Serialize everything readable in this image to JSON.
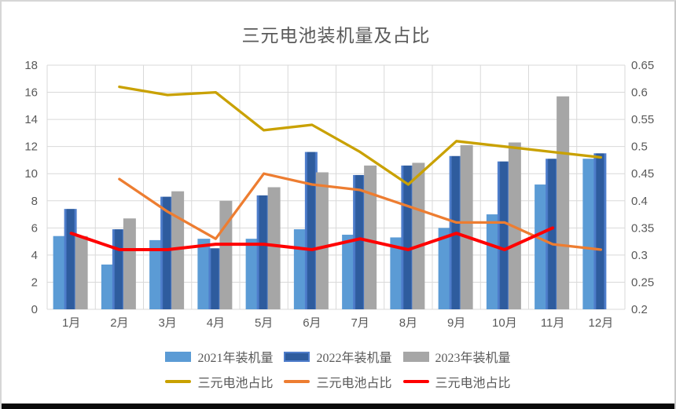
{
  "window": {
    "background": "#ffffff",
    "border_color": "#d6d6d6",
    "bottom_bar_color": "#0a0a0a"
  },
  "chart_data": {
    "type": "combo-bar-line",
    "title": "三元电池装机量及占比",
    "categories": [
      "1月",
      "2月",
      "3月",
      "4月",
      "5月",
      "6月",
      "7月",
      "8月",
      "9月",
      "10月",
      "11月",
      "12月"
    ],
    "grid": true,
    "grid_color": "#d9d9d9",
    "text_color": "#595959",
    "legend_position": "bottom",
    "left_axis": {
      "min": 0,
      "max": 18,
      "step": 2,
      "ticks": [
        "18",
        "16",
        "14",
        "12",
        "10",
        "8",
        "6",
        "4",
        "2",
        "0"
      ]
    },
    "right_axis": {
      "min": 0.2,
      "max": 0.65,
      "step": 0.05,
      "ticks": [
        "0.65",
        "0.6",
        "0.55",
        "0.5",
        "0.45",
        "0.4",
        "0.35",
        "0.3",
        "0.25",
        "0.2"
      ]
    },
    "bar_series": [
      {
        "name": "2021年装机量",
        "color": "#5b9bd5",
        "axis": "left",
        "values": [
          5.4,
          3.3,
          5.1,
          5.2,
          5.2,
          5.9,
          5.5,
          5.3,
          6.0,
          7.0,
          9.2,
          11.1
        ]
      },
      {
        "name": "2022年装机量",
        "color": "#2e5c9e",
        "bevel_color": "#4e7dcb",
        "axis": "left",
        "values": [
          7.4,
          5.9,
          8.3,
          4.5,
          8.4,
          11.6,
          9.9,
          10.6,
          11.3,
          10.9,
          11.1,
          11.5
        ]
      },
      {
        "name": "2023年装机量",
        "color": "#a6a6a6",
        "axis": "left",
        "values": [
          5.4,
          6.7,
          8.7,
          8.0,
          9.0,
          10.1,
          10.6,
          10.8,
          12.1,
          12.3,
          15.7,
          null
        ]
      }
    ],
    "line_series": [
      {
        "name": "三元电池占比",
        "color": "#c9a100",
        "width": 3.3,
        "axis": "right",
        "values": [
          null,
          0.61,
          0.595,
          0.6,
          0.53,
          0.54,
          0.49,
          0.43,
          0.51,
          0.5,
          0.49,
          0.48
        ]
      },
      {
        "name": "三元电池占比",
        "color": "#ed7d31",
        "width": 3.3,
        "axis": "right",
        "values": [
          null,
          0.44,
          0.38,
          0.33,
          0.45,
          0.43,
          0.42,
          0.39,
          0.36,
          0.36,
          0.32,
          0.31
        ]
      },
      {
        "name": "三元电池占比",
        "color": "#ff0000",
        "width": 4,
        "axis": "right",
        "values": [
          0.34,
          0.31,
          0.31,
          0.32,
          0.32,
          0.31,
          0.33,
          0.31,
          0.34,
          0.31,
          0.35,
          null
        ]
      }
    ]
  }
}
